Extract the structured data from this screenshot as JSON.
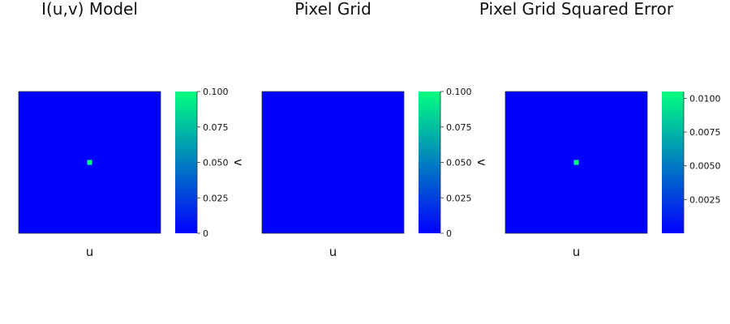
{
  "chart_data": [
    {
      "type": "heatmap",
      "title": "I(u,v) Model",
      "xlabel": "u",
      "ylabel": "v",
      "colormap": [
        "#0000ff",
        "#00ff80"
      ],
      "clim": [
        0,
        0.1
      ],
      "background_value": 0,
      "hot_pixel": {
        "u": 0,
        "v": 0,
        "value": 0.1
      },
      "colorbar_ticks": [
        "0",
        "0.025",
        "0.050",
        "0.075",
        "0.100"
      ],
      "colorbar_tick_values": [
        0,
        0.025,
        0.05,
        0.075,
        0.1
      ]
    },
    {
      "type": "heatmap",
      "title": "Pixel Grid",
      "xlabel": "u",
      "ylabel": "v",
      "colormap": [
        "#0000ff",
        "#00ff80"
      ],
      "clim": [
        0,
        0.1
      ],
      "background_value": 0,
      "hot_pixel": null,
      "colorbar_ticks": [
        "0",
        "0.025",
        "0.050",
        "0.075",
        "0.100"
      ],
      "colorbar_tick_values": [
        0,
        0.025,
        0.05,
        0.075,
        0.1
      ]
    },
    {
      "type": "heatmap",
      "title": "Pixel Grid Squared Error",
      "xlabel": "u",
      "ylabel": "",
      "colormap": [
        "#0000ff",
        "#00ff80"
      ],
      "clim": [
        0,
        0.0105
      ],
      "background_value": 0,
      "hot_pixel": {
        "u": 0,
        "v": 0,
        "value": 0.0105
      },
      "colorbar_ticks": [
        "0.0025",
        "0.0050",
        "0.0075",
        "0.0100"
      ],
      "colorbar_tick_values": [
        0.0025,
        0.005,
        0.0075,
        0.01
      ]
    }
  ]
}
